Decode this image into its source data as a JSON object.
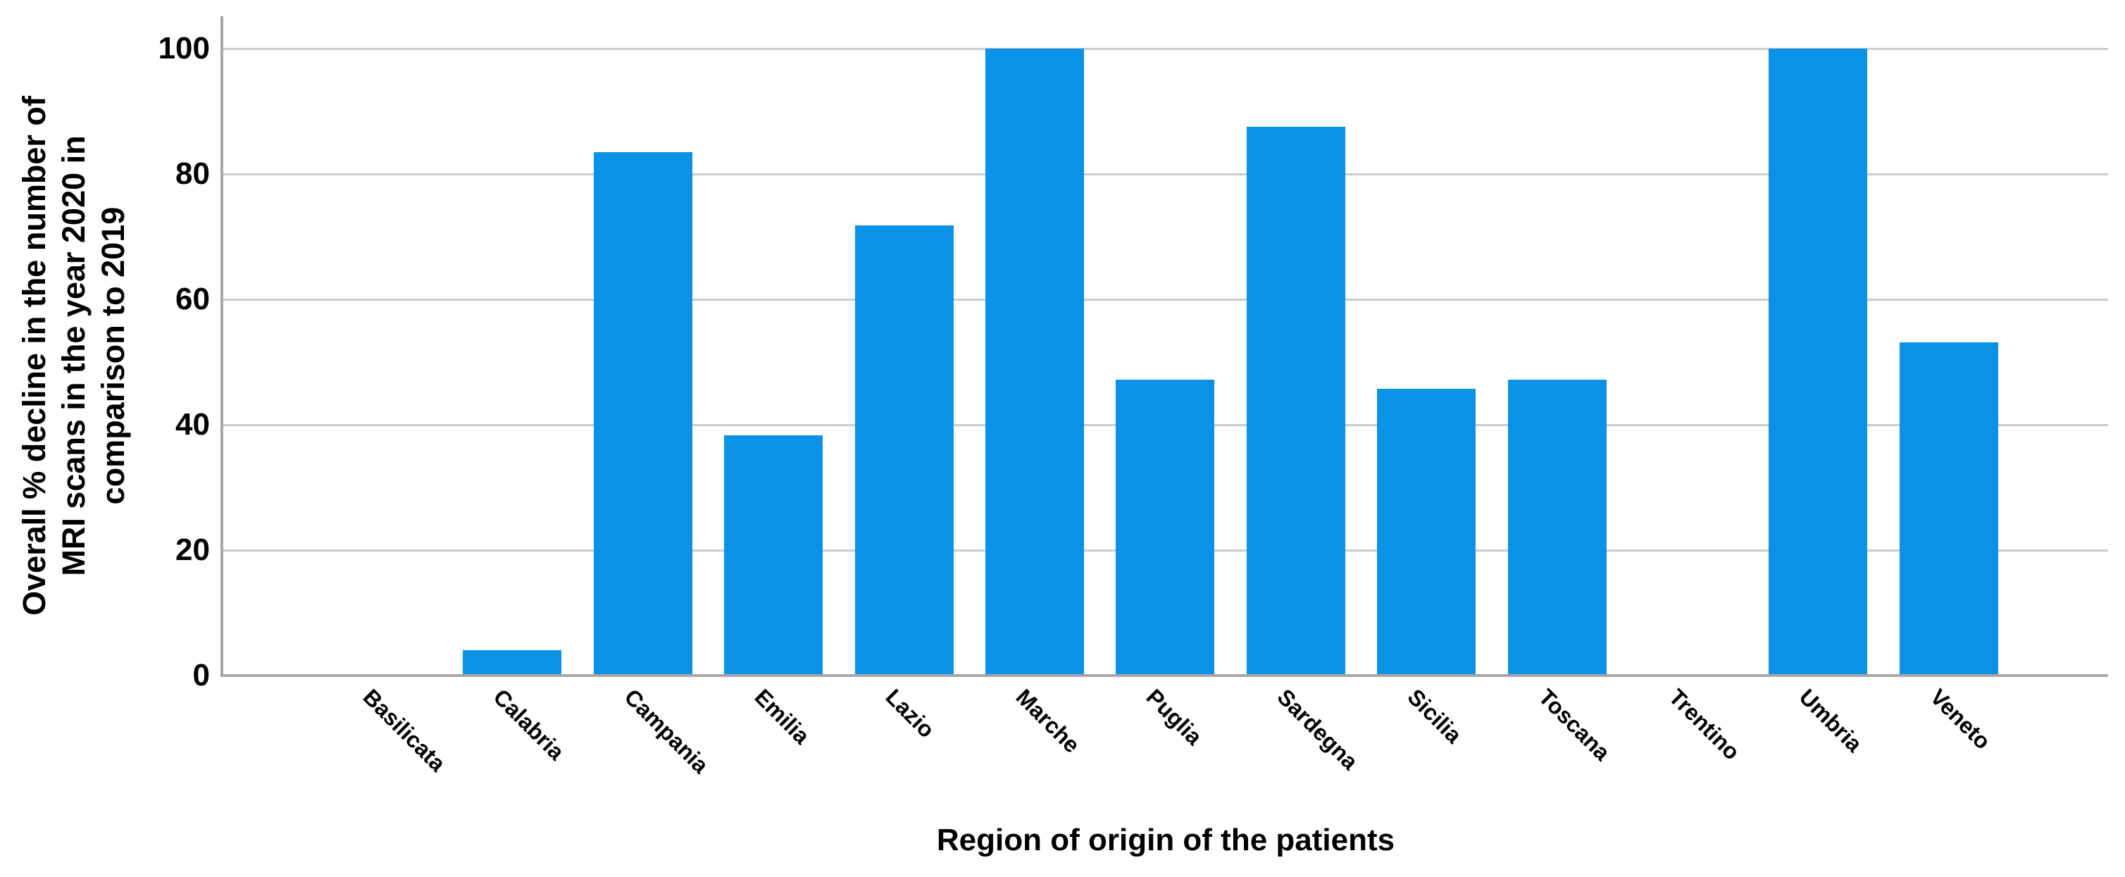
{
  "chart_data": {
    "type": "bar",
    "title": "",
    "categories": [
      "Basilicata",
      "Calabria",
      "Campania",
      "Emilia",
      "Lazio",
      "Marche",
      "Puglia",
      "Sardegna",
      "Sicilia",
      "Toscana",
      "Trentino",
      "Umbria",
      "Veneto"
    ],
    "values": [
      0,
      4,
      83.5,
      38.3,
      71.8,
      100,
      47.2,
      87.5,
      45.7,
      47.2,
      0,
      100,
      53.1
    ],
    "xlabel": "Region of origin of the patients",
    "ylabel": "Overall % decline in the number of MRI scans in the year 2020 in comparison to 2019",
    "ylabel_lines": [
      "Overall % decline in the number of",
      "MRI scans in the year 2020 in",
      "comparison to 2019"
    ],
    "yticks": [
      0,
      20,
      40,
      60,
      80,
      100
    ],
    "ylim": [
      0,
      100
    ],
    "grid": "horizontal",
    "legend": "none",
    "x_tick_rotation_deg": 45
  },
  "colors": {
    "bar": "#0B91E6",
    "gridline": "#CBCBCB",
    "axis": "#A6A6A6",
    "text": "#000000",
    "background": "#FFFFFF"
  }
}
